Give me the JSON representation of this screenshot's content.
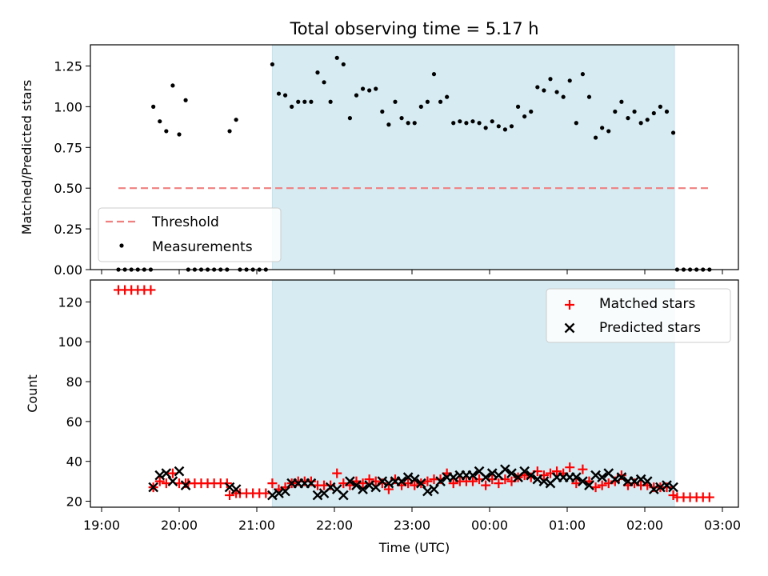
{
  "chart_data": [
    {
      "type": "scatter",
      "title": "Total observing time = 5.17 h",
      "ylabel": "Matched/Predicted stars",
      "xlabel": "",
      "ylim": [
        0,
        1.38
      ],
      "y_ticks": [
        "0.00",
        "0.25",
        "0.50",
        "0.75",
        "1.00",
        "1.25"
      ],
      "observing_window": [
        "21:12",
        "02:23"
      ],
      "legend": {
        "placement": "lower-left",
        "entries": [
          "Threshold",
          "Measurements"
        ]
      },
      "threshold": {
        "name": "Threshold",
        "value": 0.5,
        "x_range": [
          "19:13",
          "02:50"
        ],
        "color": "#f08080"
      },
      "measurements": {
        "name": "Measurements",
        "points": [
          [
            "19:13",
            0
          ],
          [
            "19:18",
            0
          ],
          [
            "19:23",
            0
          ],
          [
            "19:28",
            0
          ],
          [
            "19:33",
            0
          ],
          [
            "19:38",
            0
          ],
          [
            "19:40",
            1.0
          ],
          [
            "19:45",
            0.91
          ],
          [
            "19:50",
            0.85
          ],
          [
            "19:55",
            1.13
          ],
          [
            "20:00",
            0.83
          ],
          [
            "20:05",
            1.04
          ],
          [
            "20:07",
            0
          ],
          [
            "20:12",
            0
          ],
          [
            "20:17",
            0
          ],
          [
            "20:22",
            0
          ],
          [
            "20:27",
            0
          ],
          [
            "20:32",
            0
          ],
          [
            "20:37",
            0
          ],
          [
            "20:39",
            0.85
          ],
          [
            "20:44",
            0.92
          ],
          [
            "20:47",
            0
          ],
          [
            "20:52",
            0
          ],
          [
            "20:57",
            0
          ],
          [
            "21:02",
            0
          ],
          [
            "21:07",
            0
          ],
          [
            "21:12",
            1.26
          ],
          [
            "21:17",
            1.08
          ],
          [
            "21:22",
            1.07
          ],
          [
            "21:27",
            1.0
          ],
          [
            "21:32",
            1.03
          ],
          [
            "21:37",
            1.03
          ],
          [
            "21:42",
            1.03
          ],
          [
            "21:47",
            1.21
          ],
          [
            "21:52",
            1.15
          ],
          [
            "21:57",
            1.03
          ],
          [
            "22:02",
            1.3
          ],
          [
            "22:07",
            1.26
          ],
          [
            "22:12",
            0.93
          ],
          [
            "22:17",
            1.07
          ],
          [
            "22:22",
            1.11
          ],
          [
            "22:27",
            1.1
          ],
          [
            "22:32",
            1.11
          ],
          [
            "22:37",
            0.97
          ],
          [
            "22:42",
            0.89
          ],
          [
            "22:47",
            1.03
          ],
          [
            "22:52",
            0.93
          ],
          [
            "22:57",
            0.9
          ],
          [
            "23:02",
            0.9
          ],
          [
            "23:07",
            1.0
          ],
          [
            "23:12",
            1.03
          ],
          [
            "23:17",
            1.2
          ],
          [
            "23:22",
            1.03
          ],
          [
            "23:27",
            1.06
          ],
          [
            "23:32",
            0.9
          ],
          [
            "23:37",
            0.91
          ],
          [
            "23:42",
            0.9
          ],
          [
            "23:47",
            0.91
          ],
          [
            "23:52",
            0.9
          ],
          [
            "23:57",
            0.87
          ],
          [
            "00:02",
            0.91
          ],
          [
            "00:07",
            0.88
          ],
          [
            "00:12",
            0.86
          ],
          [
            "00:17",
            0.88
          ],
          [
            "00:22",
            1.0
          ],
          [
            "00:27",
            0.94
          ],
          [
            "00:32",
            0.97
          ],
          [
            "00:37",
            1.12
          ],
          [
            "00:42",
            1.1
          ],
          [
            "00:47",
            1.17
          ],
          [
            "00:52",
            1.09
          ],
          [
            "00:57",
            1.06
          ],
          [
            "01:02",
            1.16
          ],
          [
            "01:07",
            0.9
          ],
          [
            "01:12",
            1.2
          ],
          [
            "01:17",
            1.06
          ],
          [
            "01:22",
            0.81
          ],
          [
            "01:27",
            0.87
          ],
          [
            "01:32",
            0.85
          ],
          [
            "01:37",
            0.97
          ],
          [
            "01:42",
            1.03
          ],
          [
            "01:47",
            0.93
          ],
          [
            "01:52",
            0.97
          ],
          [
            "01:57",
            0.9
          ],
          [
            "02:02",
            0.92
          ],
          [
            "02:07",
            0.96
          ],
          [
            "02:12",
            1.0
          ],
          [
            "02:17",
            0.97
          ],
          [
            "02:22",
            0.84
          ],
          [
            "02:25",
            0
          ],
          [
            "02:30",
            0
          ],
          [
            "02:35",
            0
          ],
          [
            "02:40",
            0
          ],
          [
            "02:45",
            0
          ],
          [
            "02:50",
            0
          ]
        ]
      }
    },
    {
      "type": "scatter",
      "xlabel": "Time (UTC)",
      "ylabel": "Count",
      "ylim": [
        17,
        131
      ],
      "y_ticks": [
        "20",
        "40",
        "60",
        "80",
        "100",
        "120"
      ],
      "x_ticks": [
        "19:00",
        "20:00",
        "21:00",
        "22:00",
        "23:00",
        "00:00",
        "01:00",
        "02:00",
        "03:00"
      ],
      "observing_window": [
        "21:12",
        "02:23"
      ],
      "legend": {
        "placement": "upper-right",
        "entries": [
          "Matched stars",
          "Predicted stars"
        ]
      },
      "series": [
        {
          "name": "Matched stars",
          "marker": "+",
          "color": "#ff0000",
          "points": [
            [
              "19:13",
              126
            ],
            [
              "19:18",
              126
            ],
            [
              "19:23",
              126
            ],
            [
              "19:28",
              126
            ],
            [
              "19:33",
              126
            ],
            [
              "19:38",
              126
            ],
            [
              "19:40",
              27
            ],
            [
              "19:45",
              30
            ],
            [
              "19:50",
              29
            ],
            [
              "19:55",
              34
            ],
            [
              "20:00",
              29
            ],
            [
              "20:05",
              29
            ],
            [
              "20:07",
              29
            ],
            [
              "20:12",
              29
            ],
            [
              "20:17",
              29
            ],
            [
              "20:22",
              29
            ],
            [
              "20:27",
              29
            ],
            [
              "20:32",
              29
            ],
            [
              "20:37",
              29
            ],
            [
              "20:39",
              23
            ],
            [
              "20:44",
              24
            ],
            [
              "20:47",
              24
            ],
            [
              "20:52",
              24
            ],
            [
              "20:57",
              24
            ],
            [
              "21:02",
              24
            ],
            [
              "21:07",
              24
            ],
            [
              "21:12",
              29
            ],
            [
              "21:17",
              26
            ],
            [
              "21:22",
              27
            ],
            [
              "21:27",
              29
            ],
            [
              "21:32",
              30
            ],
            [
              "21:37",
              30
            ],
            [
              "21:42",
              30
            ],
            [
              "21:47",
              28
            ],
            [
              "21:52",
              28
            ],
            [
              "21:57",
              28
            ],
            [
              "22:02",
              34
            ],
            [
              "22:07",
              29
            ],
            [
              "22:12",
              28
            ],
            [
              "22:17",
              30
            ],
            [
              "22:22",
              29
            ],
            [
              "22:27",
              31
            ],
            [
              "22:32",
              30
            ],
            [
              "22:37",
              29
            ],
            [
              "22:42",
              26
            ],
            [
              "22:47",
              31
            ],
            [
              "22:52",
              28
            ],
            [
              "22:57",
              29
            ],
            [
              "23:02",
              28
            ],
            [
              "23:07",
              29
            ],
            [
              "23:12",
              30
            ],
            [
              "23:17",
              31
            ],
            [
              "23:22",
              31
            ],
            [
              "23:27",
              34
            ],
            [
              "23:32",
              29
            ],
            [
              "23:37",
              30
            ],
            [
              "23:42",
              30
            ],
            [
              "23:47",
              30
            ],
            [
              "23:52",
              31
            ],
            [
              "23:57",
              28
            ],
            [
              "00:02",
              31
            ],
            [
              "00:07",
              29
            ],
            [
              "00:12",
              31
            ],
            [
              "00:17",
              30
            ],
            [
              "00:22",
              32
            ],
            [
              "00:27",
              33
            ],
            [
              "00:32",
              32
            ],
            [
              "00:37",
              35
            ],
            [
              "00:42",
              33
            ],
            [
              "00:47",
              34
            ],
            [
              "00:52",
              35
            ],
            [
              "00:57",
              34
            ],
            [
              "01:02",
              37
            ],
            [
              "01:07",
              29
            ],
            [
              "01:12",
              36
            ],
            [
              "01:17",
              30
            ],
            [
              "01:22",
              27
            ],
            [
              "01:27",
              28
            ],
            [
              "01:32",
              29
            ],
            [
              "01:37",
              30
            ],
            [
              "01:42",
              33
            ],
            [
              "01:47",
              28
            ],
            [
              "01:52",
              29
            ],
            [
              "01:57",
              28
            ],
            [
              "02:02",
              28
            ],
            [
              "02:07",
              27
            ],
            [
              "02:12",
              27
            ],
            [
              "02:17",
              27
            ],
            [
              "02:22",
              23
            ],
            [
              "02:25",
              22
            ],
            [
              "02:30",
              22
            ],
            [
              "02:35",
              22
            ],
            [
              "02:40",
              22
            ],
            [
              "02:45",
              22
            ],
            [
              "02:50",
              22
            ]
          ]
        },
        {
          "name": "Predicted stars",
          "marker": "x",
          "color": "#000000",
          "points": [
            [
              "19:40",
              27
            ],
            [
              "19:45",
              33
            ],
            [
              "19:50",
              34
            ],
            [
              "19:55",
              30
            ],
            [
              "20:00",
              35
            ],
            [
              "20:05",
              28
            ],
            [
              "20:39",
              27
            ],
            [
              "20:44",
              26
            ],
            [
              "21:12",
              23
            ],
            [
              "21:17",
              24
            ],
            [
              "21:22",
              25
            ],
            [
              "21:27",
              29
            ],
            [
              "21:32",
              29
            ],
            [
              "21:37",
              29
            ],
            [
              "21:42",
              29
            ],
            [
              "21:47",
              23
            ],
            [
              "21:52",
              24
            ],
            [
              "21:57",
              27
            ],
            [
              "22:02",
              26
            ],
            [
              "22:07",
              23
            ],
            [
              "22:12",
              30
            ],
            [
              "22:17",
              28
            ],
            [
              "22:22",
              26
            ],
            [
              "22:27",
              28
            ],
            [
              "22:32",
              27
            ],
            [
              "22:37",
              30
            ],
            [
              "22:42",
              29
            ],
            [
              "22:47",
              30
            ],
            [
              "22:52",
              30
            ],
            [
              "22:57",
              32
            ],
            [
              "23:02",
              31
            ],
            [
              "23:07",
              29
            ],
            [
              "23:12",
              25
            ],
            [
              "23:17",
              26
            ],
            [
              "23:22",
              30
            ],
            [
              "23:27",
              32
            ],
            [
              "23:32",
              32
            ],
            [
              "23:37",
              33
            ],
            [
              "23:42",
              33
            ],
            [
              "23:47",
              33
            ],
            [
              "23:52",
              35
            ],
            [
              "23:57",
              32
            ],
            [
              "00:02",
              34
            ],
            [
              "00:07",
              33
            ],
            [
              "00:12",
              36
            ],
            [
              "00:17",
              34
            ],
            [
              "00:22",
              32
            ],
            [
              "00:27",
              35
            ],
            [
              "00:32",
              33
            ],
            [
              "00:37",
              31
            ],
            [
              "00:42",
              30
            ],
            [
              "00:47",
              29
            ],
            [
              "00:52",
              32
            ],
            [
              "00:57",
              32
            ],
            [
              "01:02",
              32
            ],
            [
              "01:07",
              32
            ],
            [
              "01:12",
              30
            ],
            [
              "01:17",
              28
            ],
            [
              "01:22",
              33
            ],
            [
              "01:27",
              32
            ],
            [
              "01:32",
              34
            ],
            [
              "01:37",
              31
            ],
            [
              "01:42",
              32
            ],
            [
              "01:47",
              30
            ],
            [
              "01:52",
              30
            ],
            [
              "01:57",
              31
            ],
            [
              "02:02",
              30
            ],
            [
              "02:07",
              26
            ],
            [
              "02:12",
              27
            ],
            [
              "02:17",
              28
            ],
            [
              "02:22",
              27
            ]
          ]
        }
      ]
    }
  ]
}
